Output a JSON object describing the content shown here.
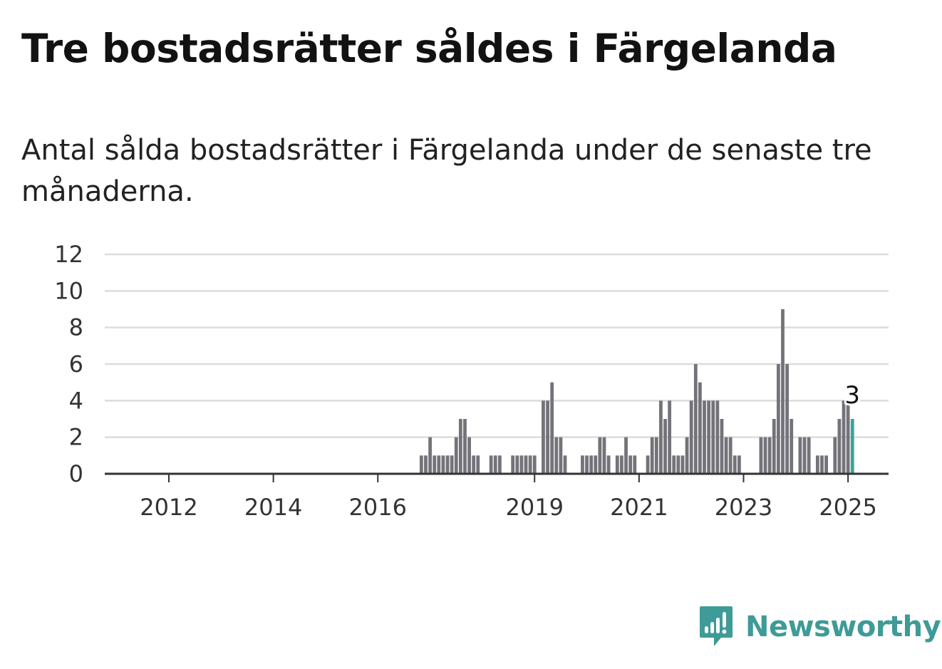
{
  "header": {
    "title": "Tre bostadsrätter såldes i Färgelanda",
    "subtitle": "Antal sålda bostadsrätter i Färgelanda under de senaste tre månaderna."
  },
  "brand": {
    "name": "Newsworthy",
    "icon": "newsworthy-logo-icon",
    "color": "#3e9b97"
  },
  "chart_data": {
    "type": "bar",
    "title": "Tre bostadsrätter såldes i Färgelanda",
    "subtitle": "Antal sålda bostadsrätter i Färgelanda under de senaste tre månaderna.",
    "xlabel": "",
    "ylabel": "",
    "ylim": [
      0,
      12
    ],
    "yticks": [
      0,
      2,
      4,
      6,
      8,
      10,
      12
    ],
    "x_tick_labels": [
      "2012",
      "2014",
      "2016",
      "2019",
      "2021",
      "2023",
      "2025"
    ],
    "grid": true,
    "bar_color": "#74737a",
    "highlight_color": "#3aa39c",
    "highlight_label": "3",
    "series": [
      {
        "values": [
          {
            "x": "2017-05",
            "y": 1
          },
          {
            "x": "2017-06",
            "y": 1
          },
          {
            "x": "2017-07",
            "y": 2
          },
          {
            "x": "2017-08",
            "y": 1
          },
          {
            "x": "2017-09",
            "y": 1
          },
          {
            "x": "2017-10",
            "y": 1
          },
          {
            "x": "2017-11",
            "y": 1
          },
          {
            "x": "2017-12",
            "y": 1
          },
          {
            "x": "2018-01",
            "y": 2
          },
          {
            "x": "2018-02",
            "y": 3
          },
          {
            "x": "2018-03",
            "y": 3
          },
          {
            "x": "2018-04",
            "y": 2
          },
          {
            "x": "2018-05",
            "y": 1
          },
          {
            "x": "2018-06",
            "y": 1
          },
          {
            "x": "2018-09",
            "y": 1
          },
          {
            "x": "2018-10",
            "y": 1
          },
          {
            "x": "2018-11",
            "y": 1
          },
          {
            "x": "2019-02",
            "y": 1
          },
          {
            "x": "2019-03",
            "y": 1
          },
          {
            "x": "2019-04",
            "y": 1
          },
          {
            "x": "2019-05",
            "y": 1
          },
          {
            "x": "2019-06",
            "y": 1
          },
          {
            "x": "2019-07",
            "y": 1
          },
          {
            "x": "2019-09",
            "y": 4
          },
          {
            "x": "2019-10",
            "y": 4
          },
          {
            "x": "2019-11",
            "y": 5
          },
          {
            "x": "2019-12",
            "y": 2
          },
          {
            "x": "2020-01",
            "y": 2
          },
          {
            "x": "2020-02",
            "y": 1
          },
          {
            "x": "2020-06",
            "y": 1
          },
          {
            "x": "2020-07",
            "y": 1
          },
          {
            "x": "2020-08",
            "y": 1
          },
          {
            "x": "2020-09",
            "y": 1
          },
          {
            "x": "2020-10",
            "y": 2
          },
          {
            "x": "2020-11",
            "y": 2
          },
          {
            "x": "2020-12",
            "y": 1
          },
          {
            "x": "2021-02",
            "y": 1
          },
          {
            "x": "2021-03",
            "y": 1
          },
          {
            "x": "2021-04",
            "y": 2
          },
          {
            "x": "2021-05",
            "y": 1
          },
          {
            "x": "2021-06",
            "y": 1
          },
          {
            "x": "2021-09",
            "y": 1
          },
          {
            "x": "2021-10",
            "y": 2
          },
          {
            "x": "2021-11",
            "y": 2
          },
          {
            "x": "2021-12",
            "y": 4
          },
          {
            "x": "2022-01",
            "y": 3
          },
          {
            "x": "2022-02",
            "y": 4
          },
          {
            "x": "2022-03",
            "y": 1
          },
          {
            "x": "2022-04",
            "y": 1
          },
          {
            "x": "2022-05",
            "y": 1
          },
          {
            "x": "2022-06",
            "y": 2
          },
          {
            "x": "2022-07",
            "y": 4
          },
          {
            "x": "2022-08",
            "y": 6
          },
          {
            "x": "2022-09",
            "y": 5
          },
          {
            "x": "2022-10",
            "y": 4
          },
          {
            "x": "2022-11",
            "y": 4
          },
          {
            "x": "2022-12",
            "y": 4
          },
          {
            "x": "2023-01",
            "y": 4
          },
          {
            "x": "2023-02",
            "y": 3
          },
          {
            "x": "2023-03",
            "y": 2
          },
          {
            "x": "2023-04",
            "y": 2
          },
          {
            "x": "2023-05",
            "y": 1
          },
          {
            "x": "2023-06",
            "y": 1
          },
          {
            "x": "2023-11",
            "y": 2
          },
          {
            "x": "2023-12",
            "y": 2
          },
          {
            "x": "2024-01",
            "y": 2
          },
          {
            "x": "2024-02",
            "y": 3
          },
          {
            "x": "2024-03",
            "y": 6
          },
          {
            "x": "2024-04",
            "y": 9
          },
          {
            "x": "2024-05",
            "y": 6
          },
          {
            "x": "2024-06",
            "y": 3
          },
          {
            "x": "2024-08",
            "y": 2
          },
          {
            "x": "2024-09",
            "y": 2
          },
          {
            "x": "2024-10",
            "y": 2
          },
          {
            "x": "2024-12",
            "y": 1
          },
          {
            "x": "2025-01",
            "y": 1
          },
          {
            "x": "2025-02",
            "y": 1
          },
          {
            "x": "2025-04",
            "y": 2
          },
          {
            "x": "2025-05",
            "y": 3
          },
          {
            "x": "2025-06",
            "y": 4
          },
          {
            "x": "2025-07",
            "y": 4
          },
          {
            "x": "2025-08",
            "y": 3
          }
        ]
      }
    ]
  }
}
